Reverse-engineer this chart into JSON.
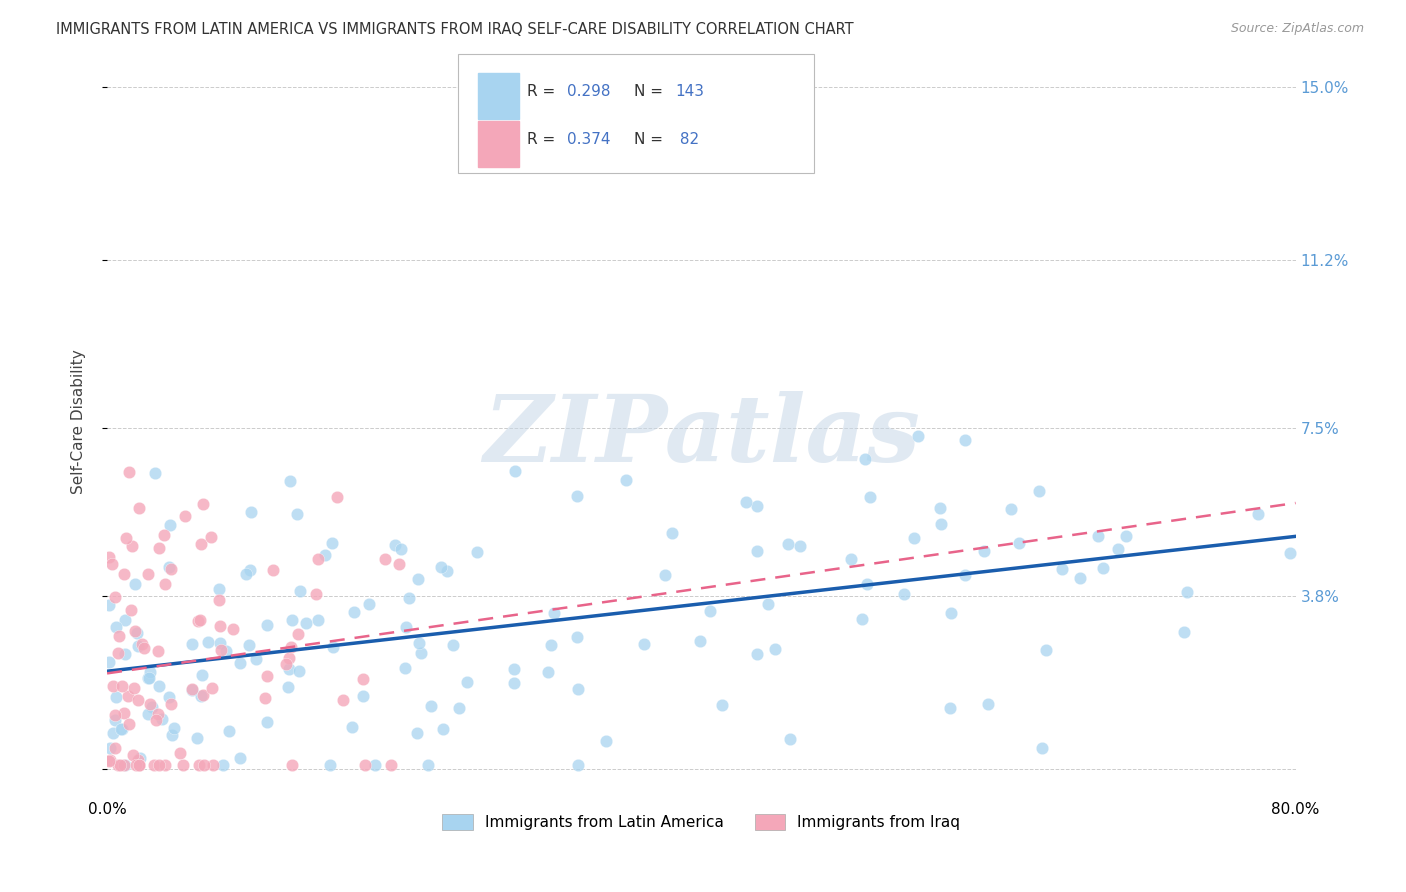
{
  "title": "IMMIGRANTS FROM LATIN AMERICA VS IMMIGRANTS FROM IRAQ SELF-CARE DISABILITY CORRELATION CHART",
  "source": "Source: ZipAtlas.com",
  "ylabel": "Self-Care Disability",
  "xlim": [
    0.0,
    0.8
  ],
  "ylim": [
    -0.005,
    0.158
  ],
  "ytick_positions": [
    0.0,
    0.038,
    0.075,
    0.112,
    0.15
  ],
  "ytick_labels": [
    "",
    "3.8%",
    "7.5%",
    "11.2%",
    "15.0%"
  ],
  "xtick_positions": [
    0.0,
    0.1,
    0.2,
    0.3,
    0.4,
    0.5,
    0.6,
    0.7,
    0.8
  ],
  "xtick_labels": [
    "0.0%",
    "",
    "",
    "",
    "",
    "",
    "",
    "",
    "80.0%"
  ],
  "latin_R": 0.298,
  "latin_N": 143,
  "iraq_R": 0.374,
  "iraq_N": 82,
  "legend_label_latin": "Immigrants from Latin America",
  "legend_label_iraq": "Immigrants from Iraq",
  "color_latin": "#A8D4F0",
  "color_iraq": "#F4A7B9",
  "line_color_latin": "#1A5DAD",
  "line_color_iraq": "#E8648A",
  "tick_color": "#5B9BD5",
  "watermark_text": "ZIPatlas",
  "background_color": "#FFFFFF",
  "grid_color": "#CCCCCC",
  "source_color": "#999999",
  "title_color": "#333333",
  "legend_text_r_color": "#333333",
  "legend_text_n_color": "#4472C4"
}
